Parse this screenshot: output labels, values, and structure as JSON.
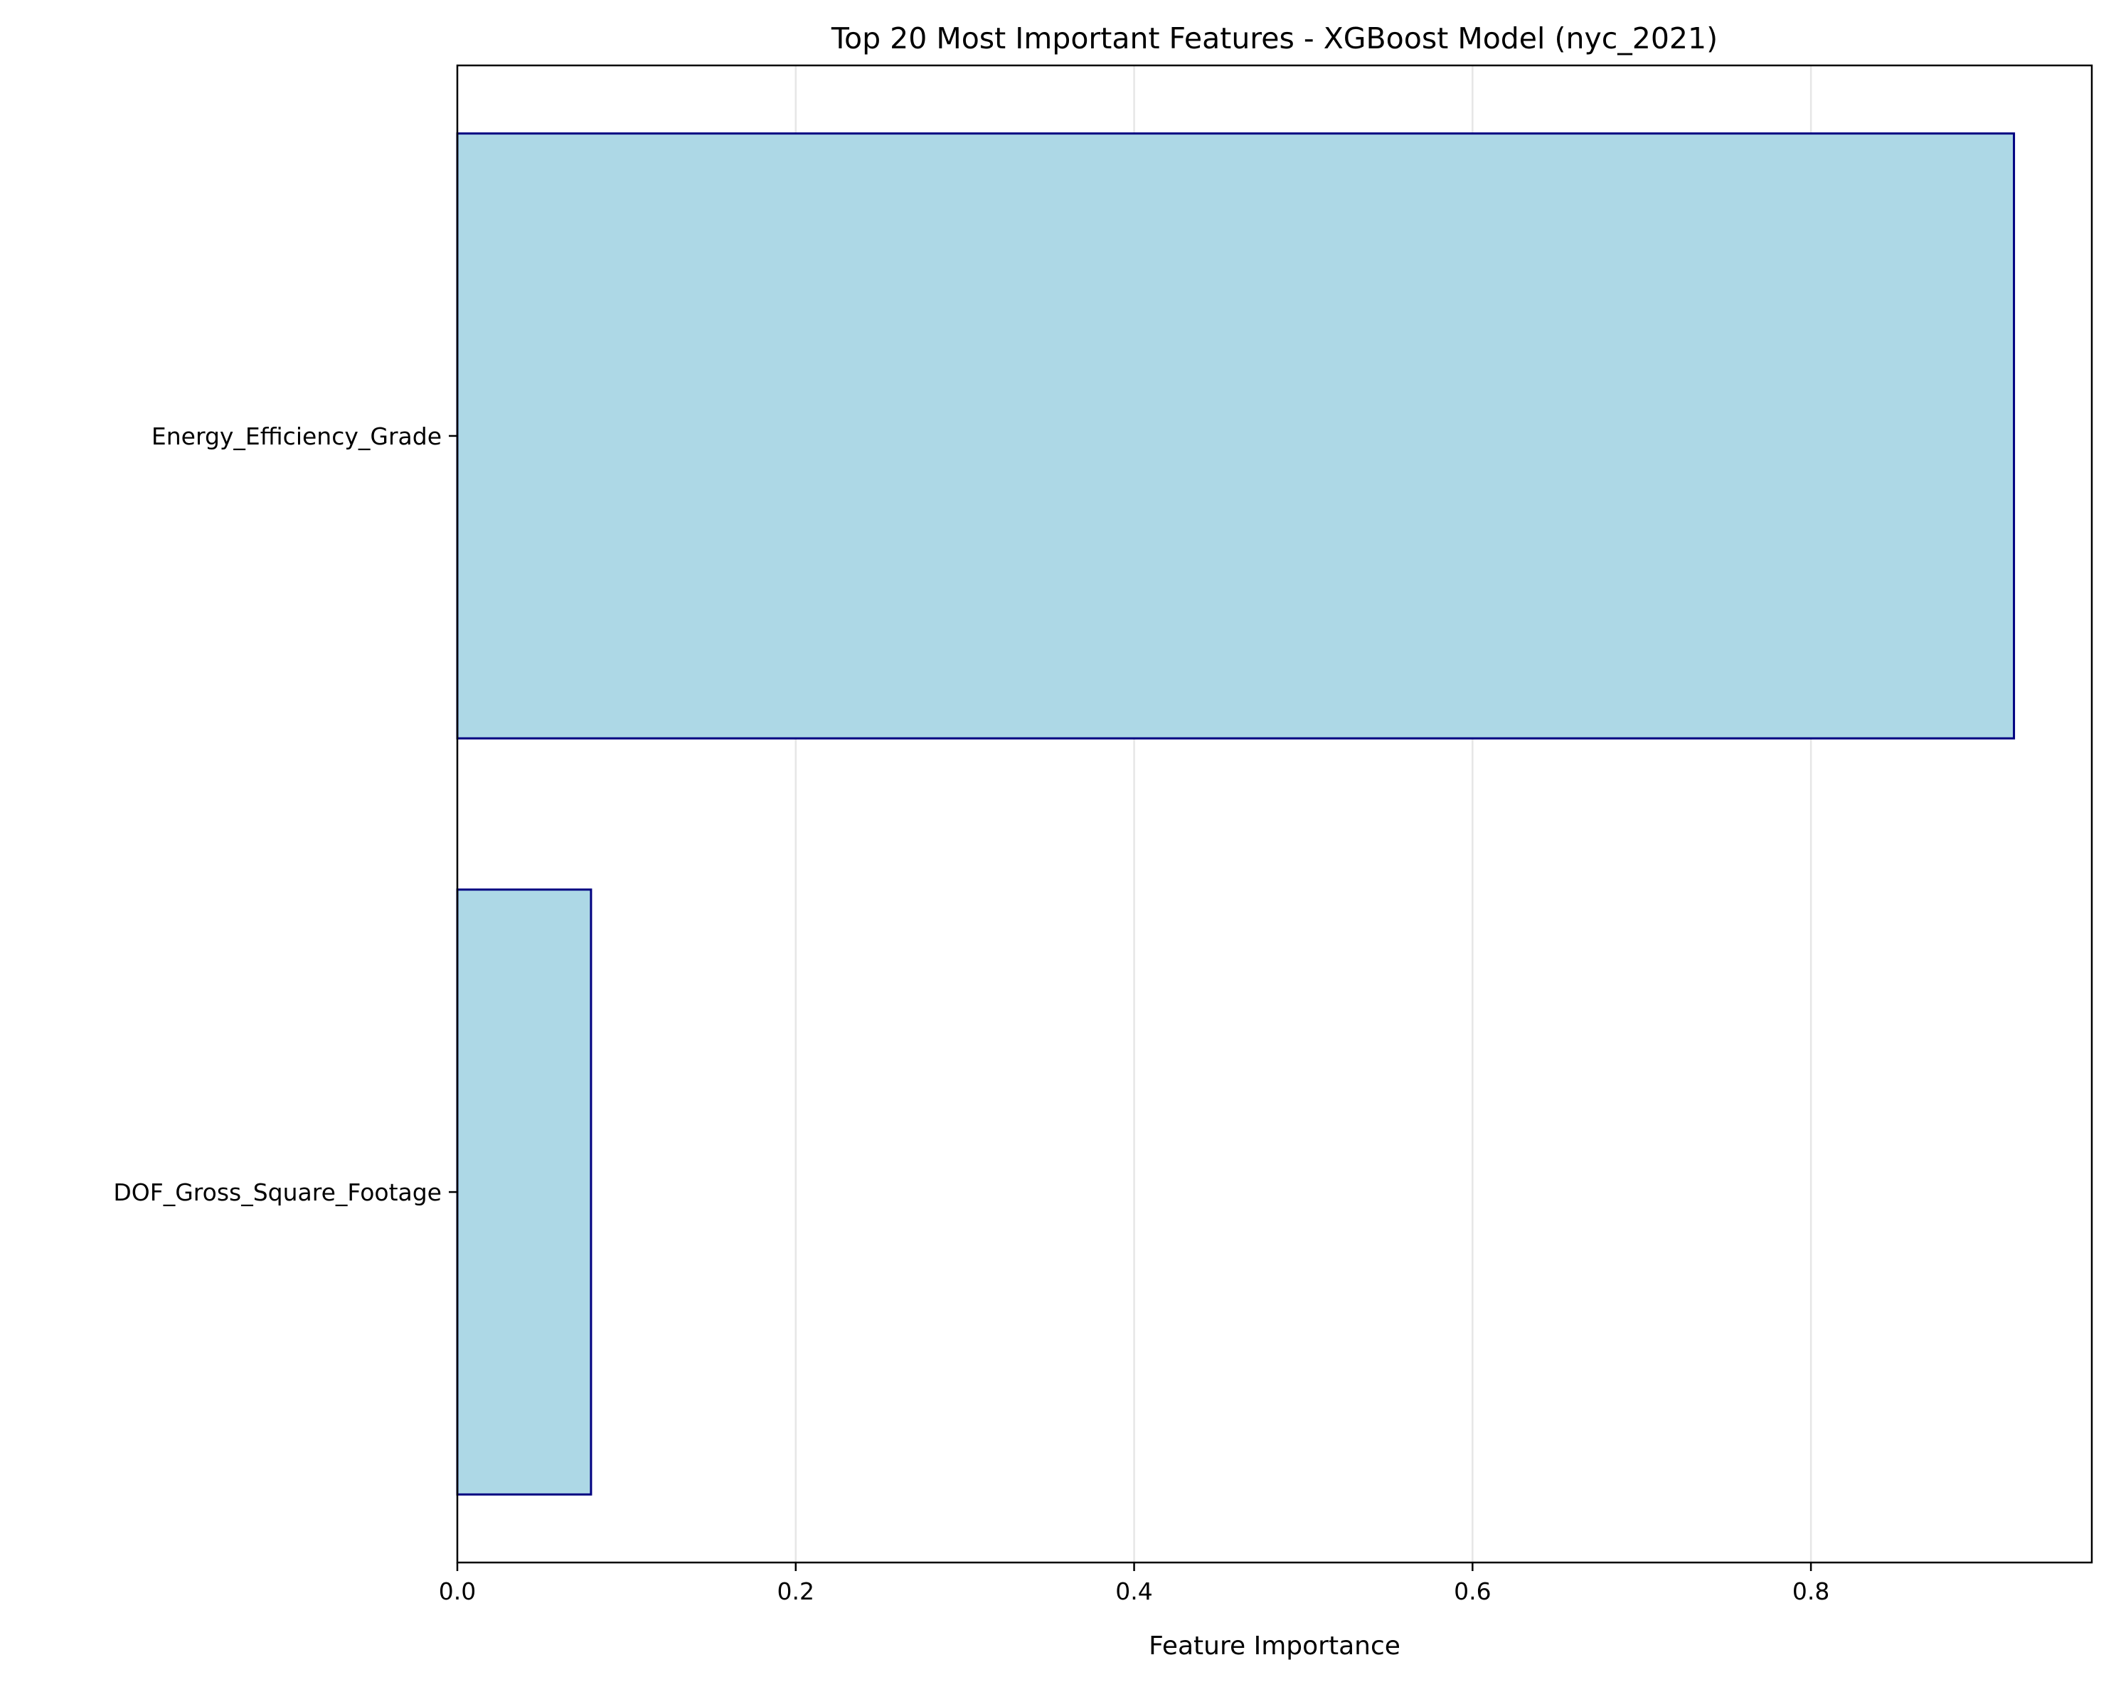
{
  "chart_data": {
    "type": "bar",
    "orientation": "horizontal",
    "title": "Top 20 Most Important Features - XGBoost Model (nyc_2021)",
    "xlabel": "Feature Importance",
    "ylabel": "",
    "categories": [
      "Energy_Efficiency_Grade",
      "DOF_Gross_Square_Footage"
    ],
    "values": [
      0.92,
      0.079
    ],
    "xlim": [
      0,
      0.966
    ],
    "xticks": [
      0.0,
      0.2,
      0.4,
      0.6,
      0.8
    ],
    "xtick_labels": [
      "0.0",
      "0.2",
      "0.4",
      "0.6",
      "0.8"
    ],
    "grid": "x",
    "colors": {
      "bar_fill": "#add8e6",
      "bar_edge": "#000080",
      "grid": "#e6e6e6",
      "axis": "#000000"
    }
  }
}
